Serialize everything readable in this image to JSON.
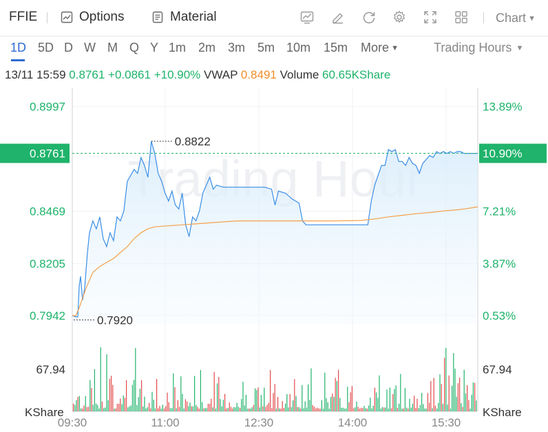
{
  "toolbar": {
    "symbol": "FFIE",
    "options_label": "Options",
    "material_label": "Material",
    "chart_label": "Chart"
  },
  "periods": {
    "items": [
      "1D",
      "5D",
      "D",
      "W",
      "M",
      "Q",
      "Y",
      "1m",
      "2m",
      "3m",
      "5m",
      "10m",
      "15m"
    ],
    "active": "1D",
    "more_label": "More",
    "session_label": "Trading Hours"
  },
  "quote": {
    "datetime": "13/11 15:59",
    "price": "0.8761",
    "change": "+0.0861",
    "change_pct": "+10.90%",
    "vwap_label": "VWAP",
    "vwap": "0.8491",
    "volume_label": "Volume",
    "volume": "60.65KShare"
  },
  "chart_data": {
    "type": "line",
    "watermark": "Trading Hour",
    "x_ticks": [
      "09:30",
      "11:00",
      "12:30",
      "14:00",
      "15:30"
    ],
    "y_ticks_price": [
      0.7942,
      0.8205,
      0.8469,
      0.8997
    ],
    "y_ticks_pct": [
      "0.53%",
      "3.87%",
      "7.21%",
      "13.89%"
    ],
    "current_price": 0.8761,
    "current_pct": "10.90%",
    "high_label": 0.8822,
    "low_label": 0.792,
    "ylim": [
      0.79,
      0.909
    ],
    "volume_axis_label": "67.94",
    "volume_unit": "KShare",
    "colors": {
      "up": "#1fb36b",
      "down": "#e24a4a",
      "price_line": "#3a8ee6",
      "vwap_line": "#f5a04a"
    },
    "price_series": [
      [
        0,
        0.7942
      ],
      [
        5,
        0.7935
      ],
      [
        8,
        0.7935
      ],
      [
        10,
        0.809
      ],
      [
        12,
        0.814
      ],
      [
        15,
        0.802
      ],
      [
        18,
        0.808
      ],
      [
        22,
        0.826
      ],
      [
        25,
        0.836
      ],
      [
        30,
        0.842
      ],
      [
        35,
        0.838
      ],
      [
        40,
        0.844
      ],
      [
        45,
        0.833
      ],
      [
        50,
        0.829
      ],
      [
        55,
        0.836
      ],
      [
        60,
        0.832
      ],
      [
        65,
        0.844
      ],
      [
        70,
        0.842
      ],
      [
        75,
        0.847
      ],
      [
        80,
        0.862
      ],
      [
        85,
        0.865
      ],
      [
        90,
        0.868
      ],
      [
        95,
        0.866
      ],
      [
        100,
        0.874
      ],
      [
        105,
        0.87
      ],
      [
        110,
        0.864
      ],
      [
        115,
        0.8822
      ],
      [
        120,
        0.876
      ],
      [
        125,
        0.866
      ],
      [
        130,
        0.862
      ],
      [
        135,
        0.856
      ],
      [
        140,
        0.852
      ],
      [
        145,
        0.857
      ],
      [
        150,
        0.85
      ],
      [
        155,
        0.848
      ],
      [
        160,
        0.856
      ],
      [
        165,
        0.84
      ],
      [
        170,
        0.834
      ],
      [
        175,
        0.844
      ],
      [
        180,
        0.842
      ],
      [
        185,
        0.847
      ],
      [
        190,
        0.856
      ],
      [
        195,
        0.86
      ],
      [
        200,
        0.864
      ],
      [
        205,
        0.858
      ],
      [
        210,
        0.86
      ],
      [
        220,
        0.859
      ],
      [
        240,
        0.859
      ],
      [
        260,
        0.859
      ],
      [
        280,
        0.859
      ],
      [
        290,
        0.858
      ],
      [
        295,
        0.85
      ],
      [
        300,
        0.857
      ],
      [
        310,
        0.856
      ],
      [
        320,
        0.853
      ],
      [
        330,
        0.851
      ],
      [
        335,
        0.842
      ],
      [
        340,
        0.84
      ],
      [
        360,
        0.84
      ],
      [
        380,
        0.84
      ],
      [
        400,
        0.84
      ],
      [
        420,
        0.84
      ],
      [
        430,
        0.84
      ],
      [
        435,
        0.852
      ],
      [
        440,
        0.86
      ],
      [
        445,
        0.865
      ],
      [
        450,
        0.87
      ],
      [
        455,
        0.87
      ],
      [
        460,
        0.878
      ],
      [
        465,
        0.877
      ],
      [
        470,
        0.878
      ],
      [
        475,
        0.872
      ],
      [
        480,
        0.872
      ],
      [
        485,
        0.87
      ],
      [
        490,
        0.874
      ],
      [
        495,
        0.871
      ],
      [
        500,
        0.87
      ],
      [
        505,
        0.866
      ],
      [
        510,
        0.871
      ],
      [
        515,
        0.873
      ],
      [
        520,
        0.875
      ],
      [
        525,
        0.874
      ],
      [
        530,
        0.877
      ],
      [
        535,
        0.876
      ],
      [
        540,
        0.877
      ],
      [
        545,
        0.876
      ],
      [
        550,
        0.877
      ],
      [
        555,
        0.8761
      ],
      [
        560,
        0.877
      ],
      [
        565,
        0.877
      ],
      [
        570,
        0.8761
      ],
      [
        575,
        0.8761
      ],
      [
        580,
        0.8761
      ],
      [
        585,
        0.8761
      ],
      [
        590,
        0.8761
      ]
    ],
    "vwap_series": [
      [
        0,
        0.7942
      ],
      [
        5,
        0.794
      ],
      [
        10,
        0.798
      ],
      [
        15,
        0.803
      ],
      [
        20,
        0.808
      ],
      [
        30,
        0.816
      ],
      [
        40,
        0.819
      ],
      [
        50,
        0.821
      ],
      [
        60,
        0.823
      ],
      [
        70,
        0.826
      ],
      [
        80,
        0.829
      ],
      [
        90,
        0.833
      ],
      [
        100,
        0.836
      ],
      [
        110,
        0.838
      ],
      [
        120,
        0.839
      ],
      [
        140,
        0.8395
      ],
      [
        160,
        0.84
      ],
      [
        180,
        0.8405
      ],
      [
        200,
        0.841
      ],
      [
        220,
        0.8415
      ],
      [
        240,
        0.842
      ],
      [
        260,
        0.842
      ],
      [
        300,
        0.842
      ],
      [
        340,
        0.842
      ],
      [
        380,
        0.842
      ],
      [
        420,
        0.8422
      ],
      [
        440,
        0.843
      ],
      [
        460,
        0.844
      ],
      [
        480,
        0.8448
      ],
      [
        500,
        0.8456
      ],
      [
        520,
        0.8462
      ],
      [
        540,
        0.847
      ],
      [
        560,
        0.8476
      ],
      [
        570,
        0.848
      ],
      [
        580,
        0.8485
      ],
      [
        590,
        0.8491
      ]
    ]
  }
}
